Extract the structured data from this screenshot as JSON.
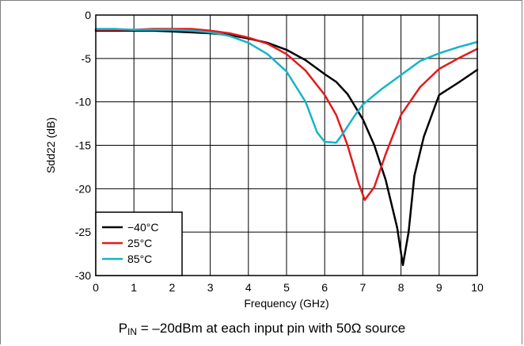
{
  "chart_data": {
    "type": "line",
    "xlabel": "Frequency (GHz)",
    "ylabel": "Sdd22 (dB)",
    "xlim": [
      0,
      10
    ],
    "ylim": [
      -30,
      0
    ],
    "xticks": [
      "0",
      "1",
      "2",
      "3",
      "4",
      "5",
      "6",
      "7",
      "8",
      "9",
      "10"
    ],
    "yticks": [
      "0",
      "-5",
      "-10",
      "-15",
      "-20",
      "-25",
      "-30"
    ],
    "grid": true,
    "legend_position": "bottom-left",
    "series": [
      {
        "name": "−40°C",
        "color": "#000000",
        "x": [
          0,
          0.5,
          1,
          1.5,
          2,
          2.5,
          3,
          3.5,
          4,
          4.5,
          5,
          5.5,
          6,
          6.3,
          6.6,
          7,
          7.3,
          7.6,
          7.9,
          8.05,
          8.2,
          8.35,
          8.6,
          9,
          9.5,
          10
        ],
        "y": [
          -1.8,
          -1.8,
          -1.8,
          -1.8,
          -1.9,
          -2.0,
          -2.1,
          -2.3,
          -2.7,
          -3.2,
          -4.0,
          -5.2,
          -6.8,
          -7.7,
          -9.1,
          -12.0,
          -15.0,
          -19.0,
          -24.5,
          -28.8,
          -25.0,
          -18.5,
          -14.0,
          -9.2,
          -7.8,
          -6.3
        ]
      },
      {
        "name": "25°C",
        "color": "#e31a1c",
        "x": [
          0,
          0.5,
          1,
          1.5,
          2,
          2.5,
          3,
          3.5,
          4,
          4.5,
          5,
          5.5,
          6,
          6.3,
          6.6,
          6.9,
          7.05,
          7.3,
          7.6,
          8,
          8.5,
          9,
          9.5,
          10
        ],
        "y": [
          -1.7,
          -1.7,
          -1.7,
          -1.6,
          -1.6,
          -1.6,
          -1.8,
          -2.1,
          -2.6,
          -3.3,
          -4.5,
          -6.4,
          -9.2,
          -11.5,
          -15.0,
          -19.5,
          -21.3,
          -19.8,
          -16.0,
          -11.5,
          -8.3,
          -6.2,
          -5.0,
          -3.9
        ]
      },
      {
        "name": "85°C",
        "color": "#17b3c9",
        "x": [
          0,
          0.5,
          1,
          1.5,
          2,
          2.5,
          3,
          3.5,
          4,
          4.5,
          5,
          5.5,
          5.8,
          6,
          6.3,
          6.5,
          6.8,
          7,
          7.5,
          8,
          8.5,
          9,
          9.5,
          10
        ],
        "y": [
          -1.6,
          -1.6,
          -1.7,
          -1.7,
          -1.7,
          -1.8,
          -2.0,
          -2.4,
          -3.2,
          -4.5,
          -6.5,
          -10.0,
          -13.5,
          -14.6,
          -14.7,
          -13.5,
          -11.5,
          -10.3,
          -8.5,
          -6.9,
          -5.3,
          -4.4,
          -3.7,
          -3.1
        ]
      }
    ]
  },
  "caption": {
    "prefix": "P",
    "subscript": "IN",
    "text": " = –20dBm at each input pin with 50Ω source"
  }
}
